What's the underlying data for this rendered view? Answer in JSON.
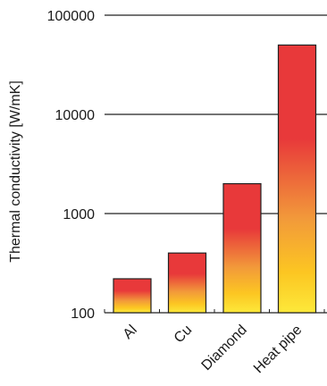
{
  "chart_data": {
    "type": "bar",
    "title": "",
    "ylabel": "Thermal conductivity [W/mK]",
    "yscale": "log",
    "ylim": [
      100,
      100000
    ],
    "yticks": [
      "100",
      "1000",
      "10000",
      "100000"
    ],
    "grid": true,
    "categories": [
      "Al",
      "Cu",
      "Diamond",
      "Heat pipe"
    ],
    "values": [
      220,
      400,
      2000,
      50000
    ],
    "colors": {
      "bar_top": "#e8393a",
      "bar_mid": "#f29a3a",
      "bar_bottom": "#fde93a",
      "outline": "#222222",
      "gridline": "#222222"
    }
  }
}
